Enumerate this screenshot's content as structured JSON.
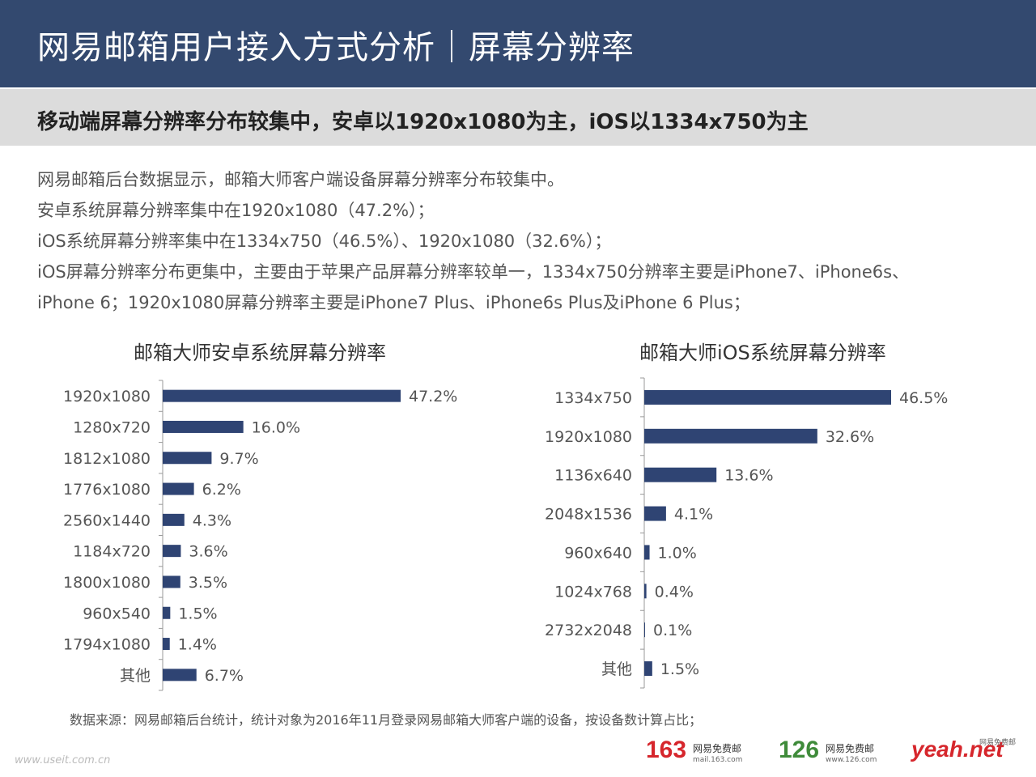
{
  "header": {
    "title": "网易邮箱用户接入方式分析｜屏幕分辨率"
  },
  "subheader": {
    "text": "移动端屏幕分辨率分布较集中，安卓以1920x1080为主，iOS以1334x750为主"
  },
  "description": [
    "网易邮箱后台数据显示，邮箱大师客户端设备屏幕分辨率分布较集中。",
    "安卓系统屏幕分辨率集中在1920x1080（47.2%）；",
    "iOS系统屏幕分辨率集中在1334x750（46.5%）、1920x1080（32.6%）；",
    "iOS屏幕分辨率分布更集中，主要由于苹果产品屏幕分辨率较单一，1334x750分辨率主要是iPhone7、iPhone6s、",
    "iPhone 6；1920x1080屏幕分辨率主要是iPhone7 Plus、iPhone6s Plus及iPhone 6 Plus；"
  ],
  "chart_data": [
    {
      "type": "bar",
      "orientation": "horizontal",
      "title": "邮箱大师安卓系统屏幕分辨率",
      "categories": [
        "1920x1080",
        "1280x720",
        "1812x1080",
        "1776x1080",
        "2560x1440",
        "1184x720",
        "1800x1080",
        "960x540",
        "1794x1080",
        "其他"
      ],
      "values": [
        47.2,
        16.0,
        9.7,
        6.2,
        4.3,
        3.6,
        3.5,
        1.5,
        1.4,
        6.7
      ],
      "labels": [
        "47.2%",
        "16.0%",
        "9.7%",
        "6.2%",
        "4.3%",
        "3.6%",
        "3.5%",
        "1.5%",
        "1.4%",
        "6.7%"
      ],
      "unit": "%",
      "color": "#2f4473",
      "xlabel": "",
      "ylabel": ""
    },
    {
      "type": "bar",
      "orientation": "horizontal",
      "title": "邮箱大师iOS系统屏幕分辨率",
      "categories": [
        "1334x750",
        "1920x1080",
        "1136x640",
        "2048x1536",
        "960x640",
        "1024x768",
        "2732x2048",
        "其他"
      ],
      "values": [
        46.5,
        32.6,
        13.6,
        4.1,
        1.0,
        0.4,
        0.1,
        1.5
      ],
      "labels": [
        "46.5%",
        "32.6%",
        "13.6%",
        "4.1%",
        "1.0%",
        "0.4%",
        "0.1%",
        "1.5%"
      ],
      "unit": "%",
      "color": "#2f4473",
      "xlabel": "",
      "ylabel": ""
    }
  ],
  "footer": {
    "source": "数据来源：网易邮箱后台统计，统计对象为2016年11月登录网易邮箱大师客户端的设备，按设备数计算占比；",
    "watermark": "www.useit.com.cn",
    "logos": [
      {
        "num": "163",
        "name": "网易免费邮",
        "url": "mail.163.com",
        "color": "#d6262c"
      },
      {
        "num": "126",
        "name": "网易免费邮",
        "url": "www.126.com",
        "color": "#3f8b3a"
      },
      {
        "num": "yeah.net",
        "name": "网易免费邮",
        "color": "#d6262c"
      }
    ]
  },
  "colors": {
    "header_bg": "#33496f",
    "subheader_bg": "#dcdcdc",
    "bar": "#2f4473"
  }
}
